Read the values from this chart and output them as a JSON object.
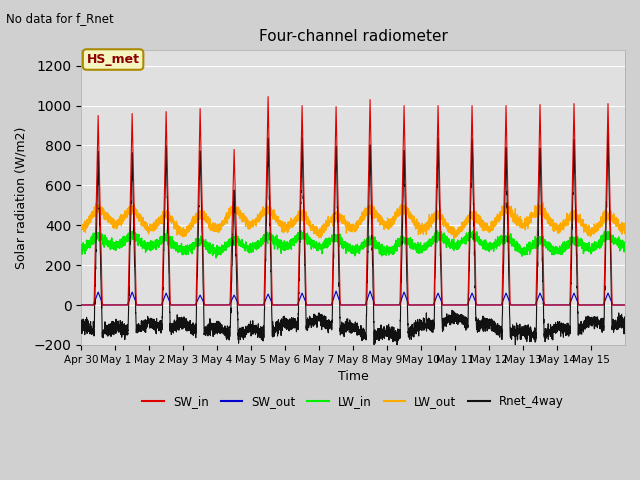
{
  "title": "Four-channel radiometer",
  "subtitle": "No data for f_Rnet",
  "ylabel": "Solar radiation (W/m2)",
  "xlabel": "Time",
  "ylim": [
    -200,
    1280
  ],
  "station_label": "HS_met",
  "fig_bg_color": "#d0d0d0",
  "plot_bg_color": "#e0e0e0",
  "colors": {
    "SW_in": "#dd0000",
    "SW_out": "#0000cc",
    "LW_in": "#00ee00",
    "LW_out": "#ffaa00",
    "Rnet_4way": "#111111"
  },
  "legend": [
    "SW_in",
    "SW_out",
    "LW_in",
    "LW_out",
    "Rnet_4way"
  ],
  "x_tick_labels": [
    "Apr 30",
    "May 1",
    "May 2",
    "May 3",
    "May 4",
    "May 5",
    "May 6",
    "May 7",
    "May 8",
    "May 9",
    "May 10",
    "May 11",
    "May 12",
    "May 13",
    "May 14",
    "May 15"
  ],
  "n_days": 16,
  "pts_per_day": 288,
  "sw_in_peaks": [
    950,
    960,
    970,
    985,
    780,
    1045,
    1000,
    995,
    1030,
    1000,
    1000,
    1000,
    1000,
    1005,
    1010,
    1010
  ],
  "sw_out_peaks": [
    65,
    65,
    60,
    50,
    50,
    55,
    60,
    70,
    70,
    65,
    60,
    60,
    60,
    60,
    60,
    60
  ],
  "lw_in_base": 280,
  "lw_out_base": 375,
  "lw_in_daytime_bump": 55,
  "lw_out_daytime_bump": 90
}
